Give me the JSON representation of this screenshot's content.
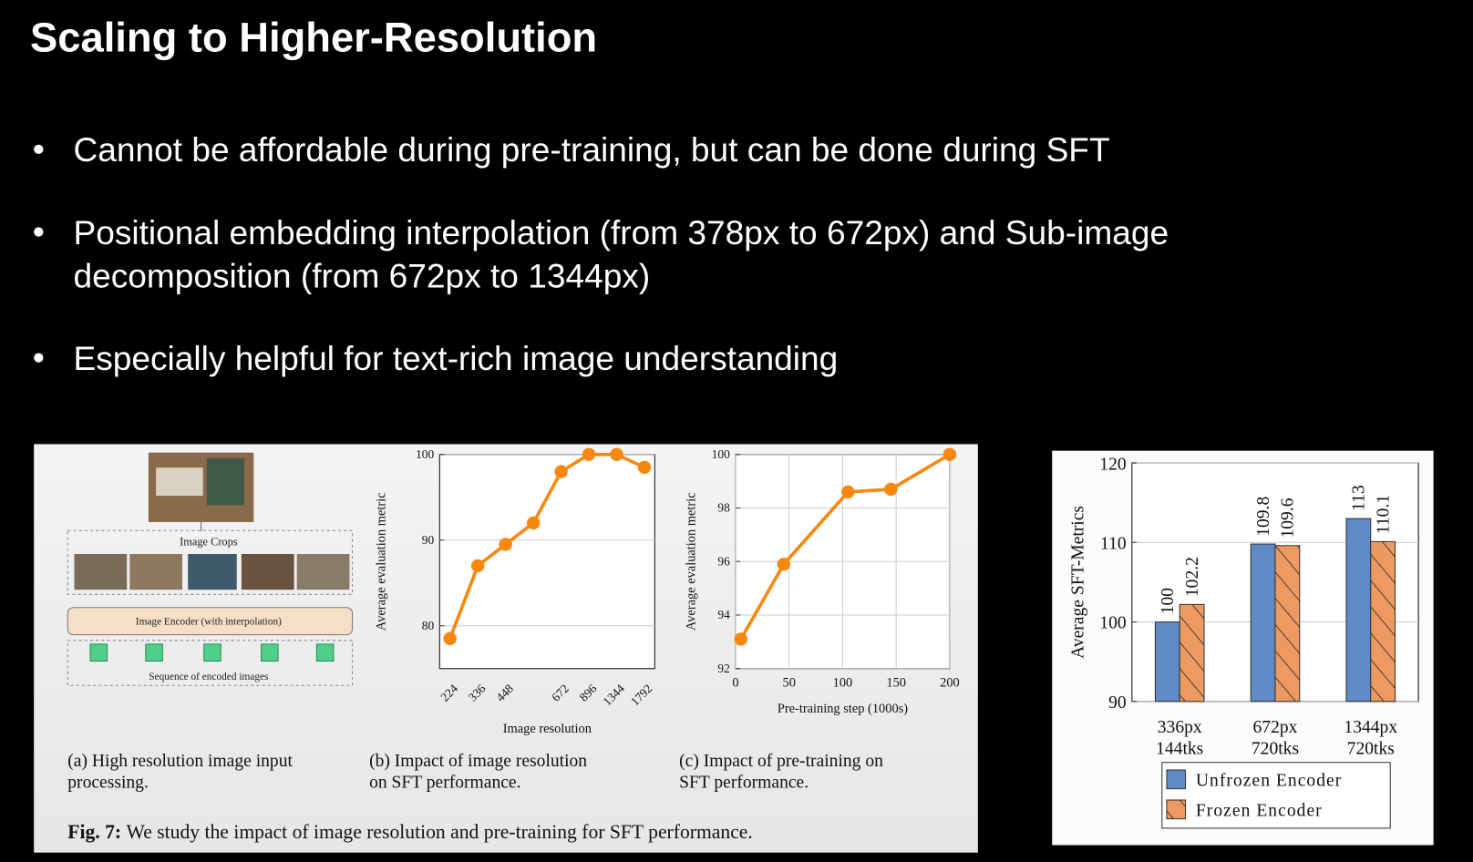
{
  "slide": {
    "title": "Scaling to Higher-Resolution",
    "bullets": [
      [
        "Cannot be affordable during pre-training, but can be done during SFT"
      ],
      [
        "Positional embedding interpolation (from 378px to 672px) and Sub-image",
        "decomposition (from 672px to 1344px)"
      ],
      [
        "Especially helpful for text-rich image understanding"
      ]
    ]
  },
  "figure": {
    "diagram": {
      "crops_label": "Image Crops",
      "encoder_label": "Image Encoder (with interpolation)",
      "sequence_label": "Sequence of encoded images"
    },
    "captions": [
      [
        "(a) High resolution image input",
        "processing."
      ],
      [
        "(b) Impact of image resolution",
        "on SFT performance."
      ],
      [
        "(c) Impact of pre-training on",
        "SFT performance."
      ]
    ],
    "fig_label": "Fig. 7:",
    "fig_text": "We study the impact of image resolution and pre-training for SFT performance."
  },
  "chart_data": [
    {
      "type": "line",
      "categories": [
        "224",
        "336",
        "448",
        null,
        "672",
        "896",
        "1344",
        "1792"
      ],
      "values": [
        78.5,
        87,
        89.5,
        92,
        98,
        100,
        100,
        98.5
      ],
      "color": "#f7870f",
      "x_label": "Image resolution",
      "y_label": "Average evaluation metric",
      "ylim": [
        75,
        100
      ],
      "yticks": [
        80,
        90,
        100
      ],
      "grid": true
    },
    {
      "type": "line",
      "x": [
        5,
        45,
        105,
        145,
        200
      ],
      "values": [
        93.1,
        95.9,
        98.6,
        98.7,
        100
      ],
      "color": "#f7870f",
      "x_label": "Pre-training step (1000s)",
      "y_label": "Average evaluation metric",
      "xlim": [
        0,
        200
      ],
      "xticks": [
        0,
        50,
        100,
        150,
        200
      ],
      "ylim": [
        92,
        100
      ],
      "yticks": [
        92,
        94,
        96,
        98,
        100
      ],
      "grid": true
    },
    {
      "type": "bar",
      "categories": [
        [
          "336px",
          "144tks"
        ],
        [
          "672px",
          "720tks"
        ],
        [
          "1344px",
          "720tks"
        ]
      ],
      "series": [
        {
          "name": "Unfrozen Encoder",
          "color": "#5e8ac6",
          "values": [
            100,
            109.8,
            113
          ],
          "hatch": false
        },
        {
          "name": "Frozen Encoder",
          "color": "#ec9a62",
          "values": [
            102.2,
            109.6,
            110.1
          ],
          "hatch": true
        }
      ],
      "y_label": "Average SFT-Metrics",
      "ylim": [
        90,
        120
      ],
      "yticks": [
        90,
        100,
        110,
        120
      ],
      "grid": true,
      "legend": "bottom"
    }
  ]
}
